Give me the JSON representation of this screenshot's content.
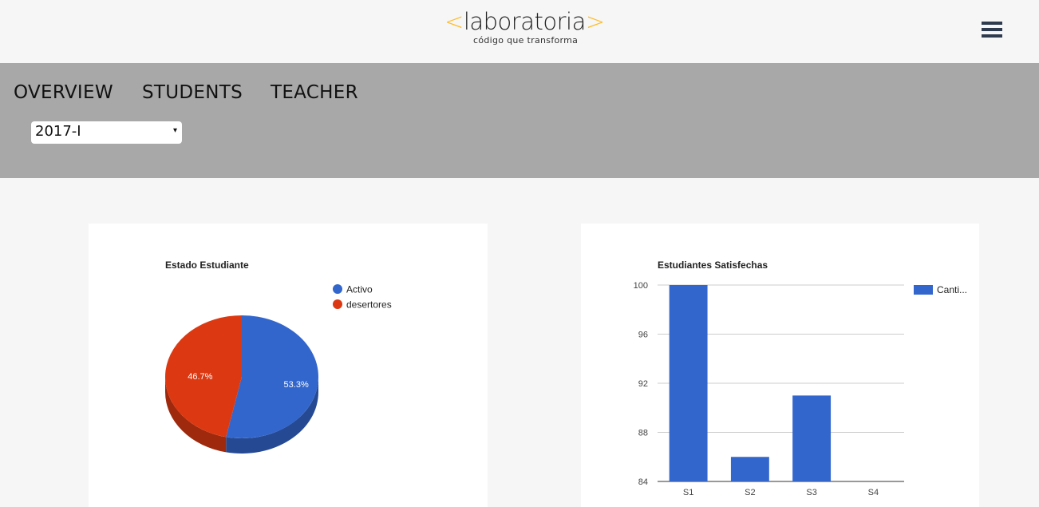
{
  "header": {
    "logo_bracket_left": "<",
    "logo_word": "laboratoria",
    "logo_bracket_right": ">",
    "tagline": "código que transforma",
    "menu_icon": "hamburger-menu-icon"
  },
  "nav": {
    "items": [
      {
        "label": "OVERVIEW"
      },
      {
        "label": "STUDENTS"
      },
      {
        "label": "TEACHER"
      }
    ]
  },
  "filter": {
    "selected": "2017-I",
    "caret": "▾"
  },
  "colors": {
    "accent": "#ffbc29",
    "blue": "#3366cc",
    "red": "#dc3912",
    "navband": "#a8a8a8"
  },
  "chart_data": [
    {
      "type": "pie",
      "title": "Estado Estudiante",
      "legend_placement": "right",
      "slices": [
        {
          "name": "Activo",
          "value": 53.3,
          "label": "53.3%",
          "color": "#3366cc"
        },
        {
          "name": "desertores",
          "value": 46.7,
          "label": "46.7%",
          "color": "#dc3912"
        }
      ]
    },
    {
      "type": "bar",
      "title": "Estudiantes Satisfechas",
      "categories": [
        "S1",
        "S2",
        "S3",
        "S4"
      ],
      "series": [
        {
          "name": "Canti...",
          "values": [
            100,
            86,
            91,
            84
          ],
          "color": "#3366cc"
        }
      ],
      "ylim": [
        84,
        100
      ],
      "yticks": [
        "100",
        "96",
        "92",
        "88",
        "84"
      ],
      "legend_placement": "top-right",
      "grid": true
    }
  ]
}
